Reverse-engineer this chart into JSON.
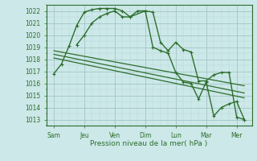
{
  "xlabel": "Pression niveau de la mer( hPa )",
  "ylim": [
    1012.5,
    1022.5
  ],
  "yticks": [
    1013,
    1014,
    1015,
    1016,
    1017,
    1018,
    1019,
    1020,
    1021,
    1022
  ],
  "x_labels": [
    "Sam",
    "Jeu",
    "Ven",
    "Dim",
    "Lun",
    "Mar",
    "Mer"
  ],
  "x_positions": [
    0,
    2,
    4,
    6,
    8,
    10,
    12
  ],
  "background_color": "#cce8e8",
  "grid_major_color": "#9bbfbf",
  "grid_minor_color": "#b8d8d8",
  "line_color": "#2d6e2d",
  "lines": [
    {
      "x": [
        0,
        0.5,
        1.0,
        1.5,
        2.0,
        2.5,
        3.0,
        3.5,
        4.0,
        4.5,
        5.0,
        5.5,
        6.0,
        6.5,
        7.0,
        7.5,
        8.0,
        8.5,
        9.0,
        9.5,
        10.0,
        10.5,
        11.0,
        11.5,
        12.0,
        12.5
      ],
      "y": [
        1016.8,
        1017.6,
        1019.1,
        1020.8,
        1021.9,
        1022.1,
        1022.2,
        1022.2,
        1022.2,
        1022.0,
        1021.5,
        1022.0,
        1022.0,
        1021.9,
        1019.4,
        1018.7,
        1019.4,
        1018.8,
        1018.6,
        1016.2,
        1016.2,
        1016.7,
        1016.9,
        1016.9,
        1013.2,
        1013.0
      ],
      "marker": "+",
      "markersize": 3.5,
      "linewidth": 1.0
    },
    {
      "x": [
        1.5,
        2.0,
        2.5,
        3.0,
        3.5,
        4.0,
        4.5,
        5.0,
        6.0,
        6.5,
        7.0,
        7.5,
        8.0,
        8.5,
        9.0,
        9.5,
        10.0,
        10.5,
        11.0,
        11.5,
        12.0,
        12.5
      ],
      "y": [
        1019.2,
        1020.0,
        1021.0,
        1021.5,
        1021.8,
        1022.0,
        1021.5,
        1021.5,
        1022.0,
        1019.0,
        1018.7,
        1018.5,
        1016.9,
        1016.1,
        1016.0,
        1014.7,
        1016.1,
        1013.3,
        1014.0,
        1014.3,
        1014.5,
        1013.0
      ],
      "marker": "+",
      "markersize": 3.5,
      "linewidth": 1.0
    },
    {
      "x": [
        0,
        12.5
      ],
      "y": [
        1018.7,
        1015.8
      ],
      "marker": null,
      "markersize": 0,
      "linewidth": 0.9
    },
    {
      "x": [
        0,
        12.5
      ],
      "y": [
        1018.4,
        1015.2
      ],
      "marker": null,
      "markersize": 0,
      "linewidth": 0.9
    },
    {
      "x": [
        0,
        12.5
      ],
      "y": [
        1018.1,
        1014.8
      ],
      "marker": null,
      "markersize": 0,
      "linewidth": 0.9
    }
  ],
  "xlim": [
    -0.5,
    13.0
  ]
}
